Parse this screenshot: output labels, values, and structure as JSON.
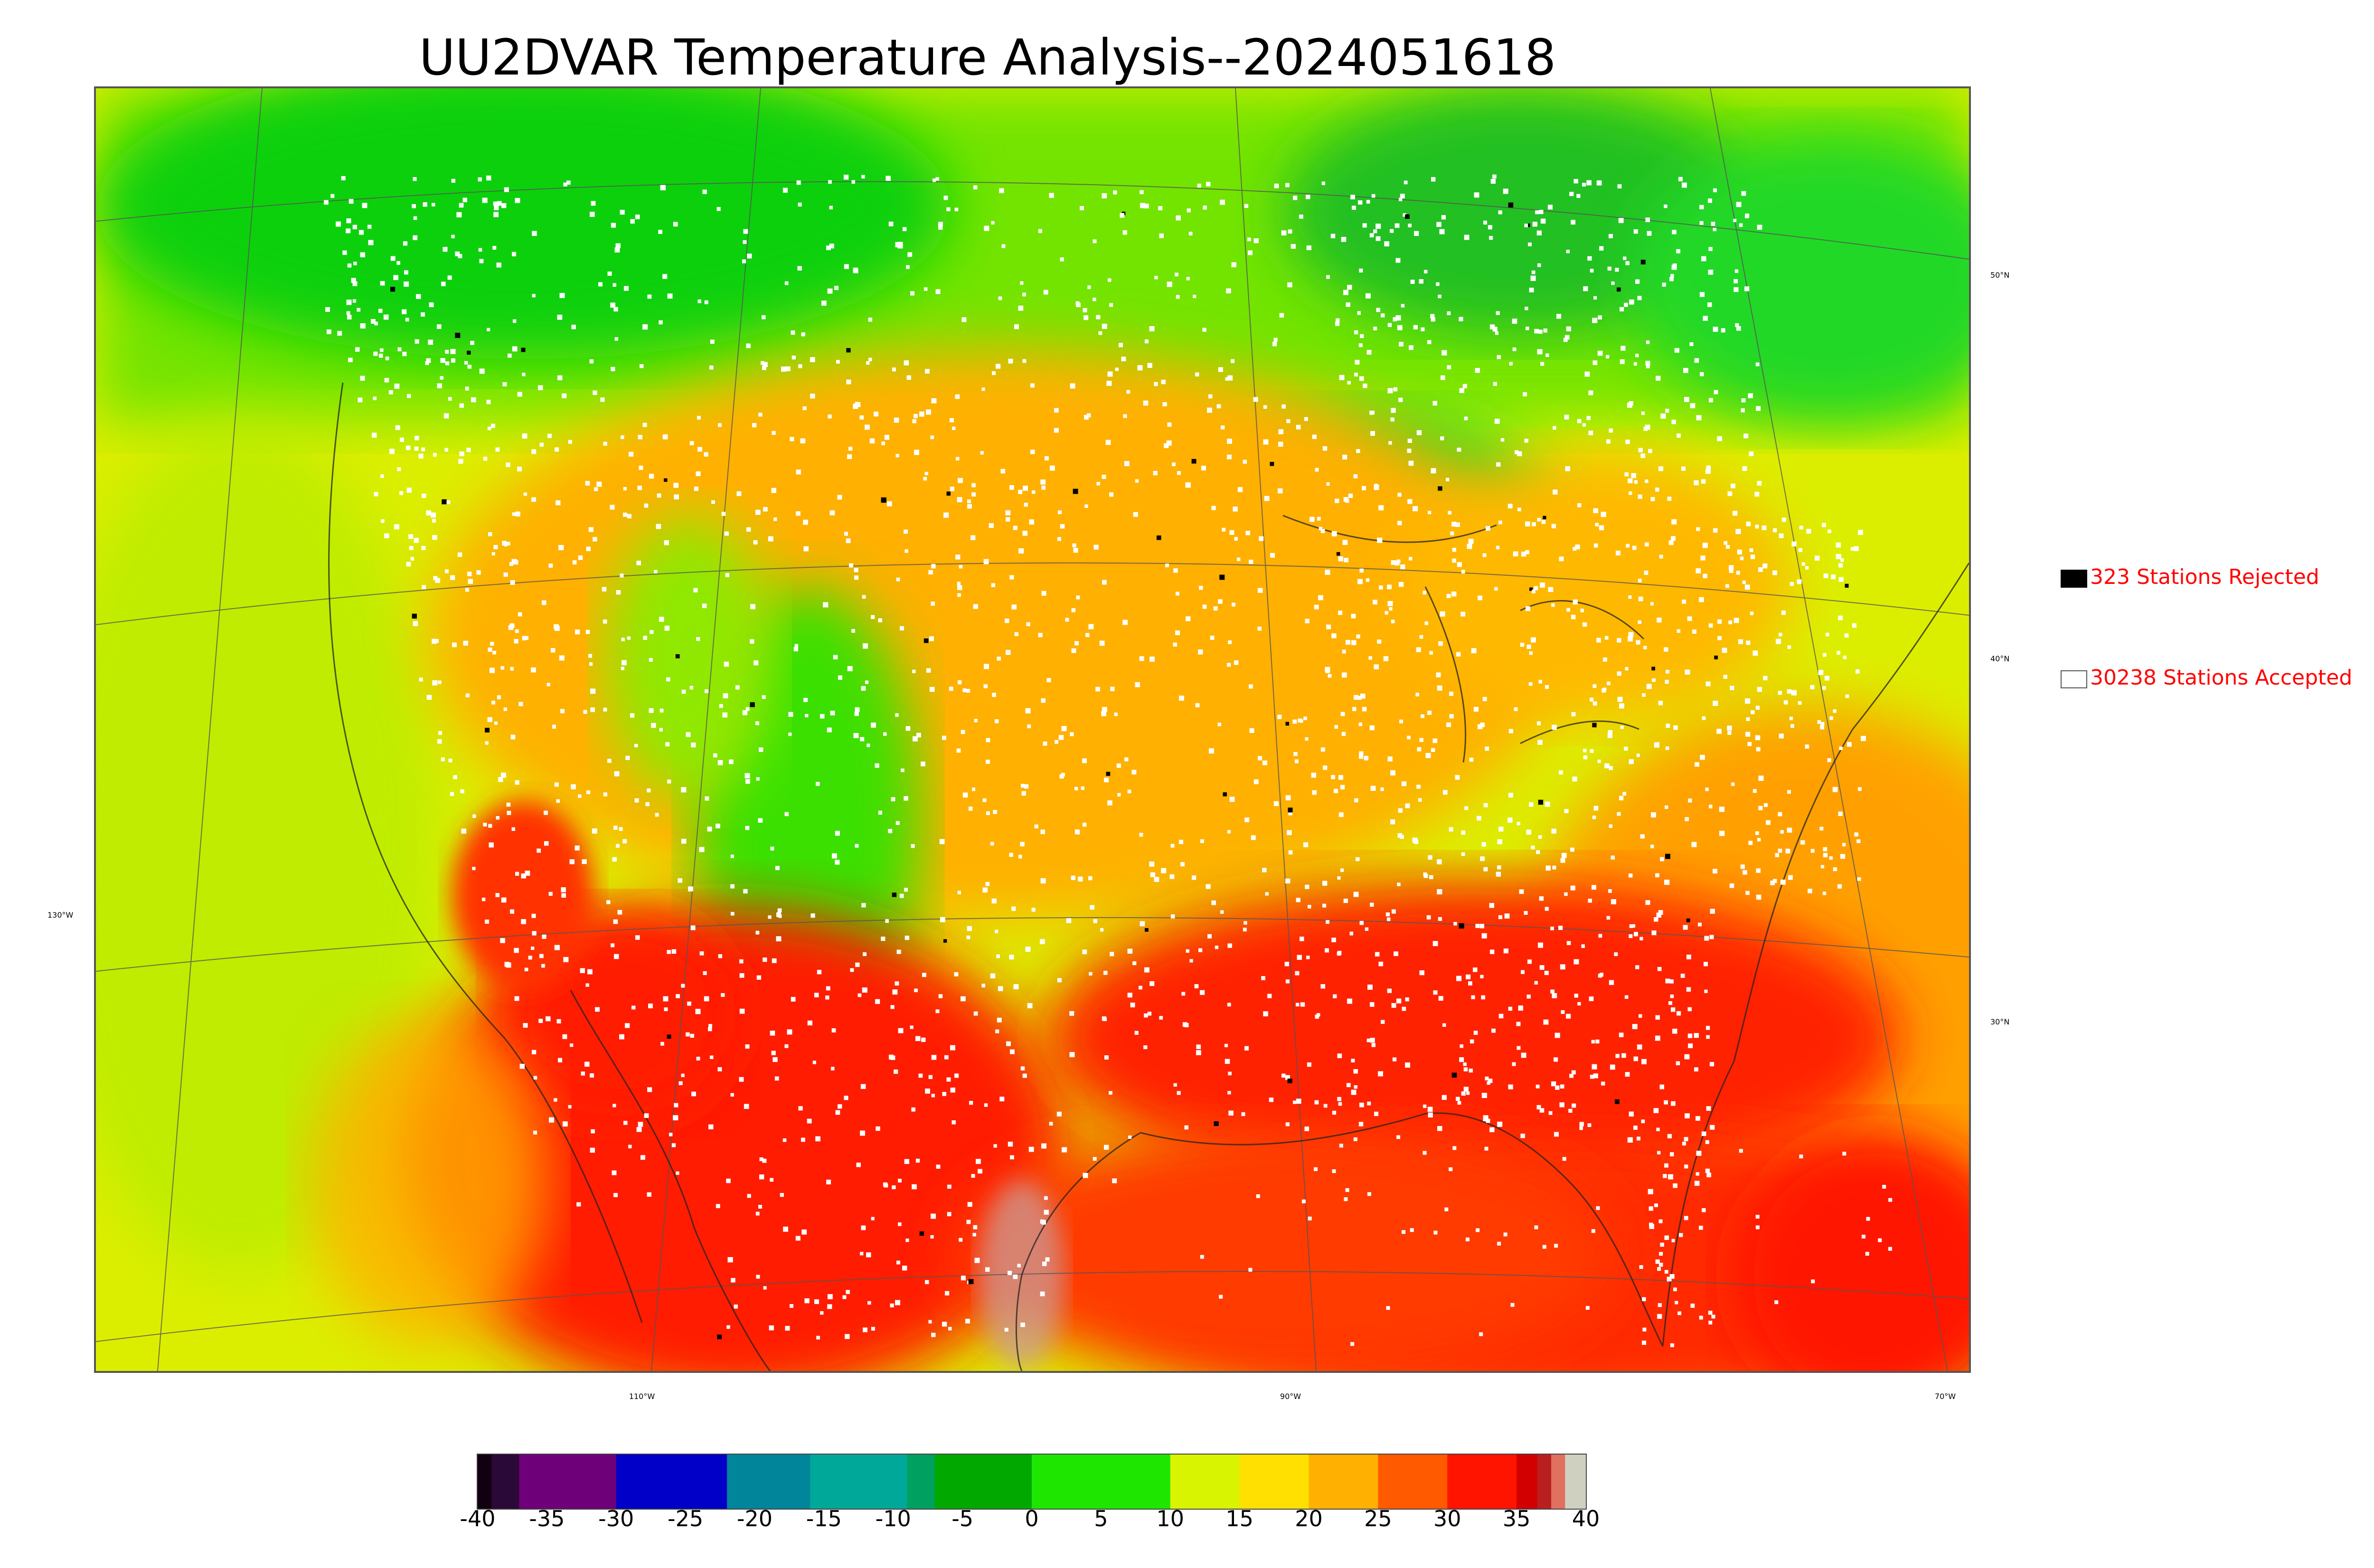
{
  "title": "UU2DVAR Temperature Analysis--2024051618",
  "legend": {
    "rejected_label": "323 Stations Rejected",
    "accepted_label": "30238 Stations Accepted",
    "rejected_color": "#000000",
    "accepted_color": "#ffffff"
  },
  "longitude_labels": [
    "110°W",
    "90°W",
    "70°W"
  ],
  "latitude_labels": [
    "50°N",
    "40°N",
    "30°N",
    "130°W"
  ],
  "colorbar": {
    "ticks": [
      "-40",
      "-35",
      "-30",
      "-25",
      "-20",
      "-15",
      "-10",
      "-5",
      "0",
      "5",
      "10",
      "15",
      "20",
      "25",
      "30",
      "35",
      "40"
    ],
    "range": [
      -40,
      40
    ],
    "colors": [
      {
        "from": -40,
        "to": -39,
        "color": "#120010"
      },
      {
        "from": -39,
        "to": -37,
        "color": "#2a0838"
      },
      {
        "from": -37,
        "to": -30,
        "color": "#6e007a"
      },
      {
        "from": -30,
        "to": -22,
        "color": "#0000c8"
      },
      {
        "from": -22,
        "to": -16,
        "color": "#00859a"
      },
      {
        "from": -16,
        "to": -9,
        "color": "#00a89a"
      },
      {
        "from": -9,
        "to": -7,
        "color": "#00a060"
      },
      {
        "from": -7,
        "to": 0,
        "color": "#00a800"
      },
      {
        "from": 0,
        "to": 10,
        "color": "#1fe600"
      },
      {
        "from": 10,
        "to": 15,
        "color": "#d8f400"
      },
      {
        "from": 15,
        "to": 20,
        "color": "#ffe000"
      },
      {
        "from": 20,
        "to": 25,
        "color": "#ffb000"
      },
      {
        "from": 25,
        "to": 30,
        "color": "#ff5a00"
      },
      {
        "from": 30,
        "to": 35,
        "color": "#ff1400"
      },
      {
        "from": 35,
        "to": 36.5,
        "color": "#d20000"
      },
      {
        "from": 36.5,
        "to": 37.5,
        "color": "#b82020"
      },
      {
        "from": 37.5,
        "to": 38.5,
        "color": "#e07060"
      },
      {
        "from": 38.5,
        "to": 40,
        "color": "#d0d0c0"
      }
    ]
  },
  "colors": {
    "cold_green": "#14dc1e",
    "mild_yellow": "#e0f000",
    "warm_orange": "#ffa600",
    "hot_red": "#ff1a00",
    "station_accepted": "#ffffff",
    "station_rejected": "#000000"
  }
}
